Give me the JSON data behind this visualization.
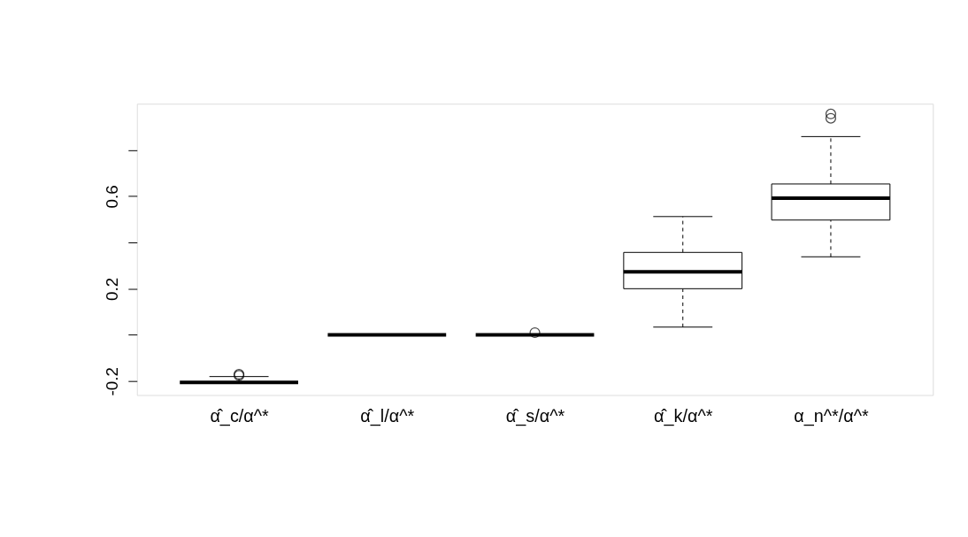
{
  "chart_data": {
    "type": "box",
    "categories": [
      "α̂_c/α^*",
      "α̂_l/α^*",
      "α̂_s/α^*",
      "α̂_k/α^*",
      "α_n^*/α^*"
    ],
    "boxes": [
      {
        "low": -0.205,
        "q1": -0.205,
        "median": -0.205,
        "q3": -0.205,
        "high": -0.18,
        "outliers": [
          -0.17,
          -0.175
        ]
      },
      {
        "low": 0.0,
        "q1": 0.0,
        "median": 0.0,
        "q3": 0.0,
        "high": 0.0
      },
      {
        "low": 0.0,
        "q1": 0.0,
        "median": 0.0,
        "q3": 0.0,
        "high": 0.0,
        "outliers": [
          0.01
        ]
      },
      {
        "low": 0.034,
        "q1": 0.2,
        "median": 0.273,
        "q3": 0.357,
        "high": 0.512
      },
      {
        "low": 0.338,
        "q1": 0.497,
        "median": 0.592,
        "q3": 0.653,
        "high": 0.858,
        "outliers": [
          0.956,
          0.937
        ]
      }
    ],
    "ylim": [
      -0.26,
      1.0
    ],
    "yticks": [
      -0.2,
      {
        "value": 0.0,
        "label": null
      },
      0.2,
      {
        "value": 0.4,
        "label": null
      },
      0.6,
      {
        "value": 0.8,
        "label": null
      }
    ],
    "grid": false
  }
}
